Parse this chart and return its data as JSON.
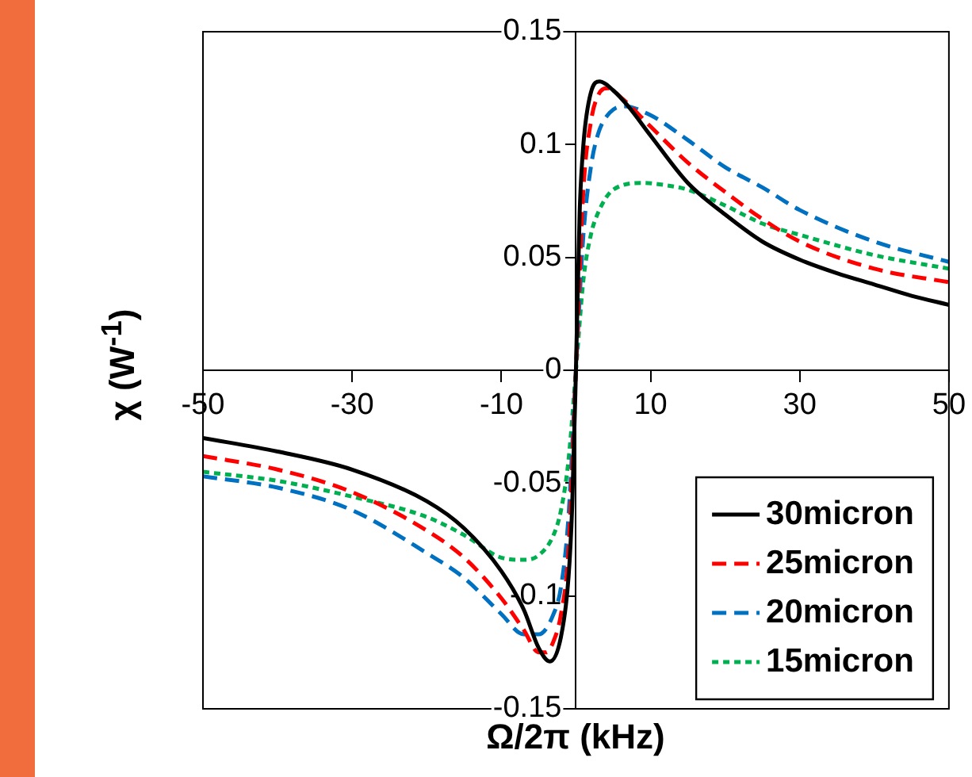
{
  "chart_data": {
    "type": "line",
    "xlabel": "Ω/2π (kHz)",
    "ylabel": "χ (W$^{-1}$)",
    "xlim": [
      -50,
      50
    ],
    "ylim": [
      -0.15,
      0.15
    ],
    "xticks": [
      -50,
      -30,
      -10,
      10,
      30,
      50
    ],
    "yticks": [
      -0.15,
      -0.1,
      -0.05,
      0,
      0.05,
      0.1,
      0.15
    ],
    "grid": false,
    "legend": "bottom right",
    "marker": "none",
    "series": [
      {
        "name": "30micron",
        "color": "#000000",
        "line_style": "solid",
        "x": [
          -50,
          -40,
          -30,
          -20,
          -15,
          -10,
          -7,
          -5,
          -3.5,
          -2,
          -1,
          -0.5,
          0,
          0.5,
          1,
          2,
          3.2,
          5,
          7,
          10,
          15,
          20,
          25,
          30,
          35,
          40,
          45,
          50
        ],
        "values": [
          -0.03,
          -0.036,
          -0.044,
          -0.058,
          -0.07,
          -0.089,
          -0.106,
          -0.123,
          -0.129,
          -0.118,
          -0.092,
          -0.06,
          0,
          0.07,
          0.1,
          0.123,
          0.128,
          0.124,
          0.117,
          0.104,
          0.083,
          0.069,
          0.057,
          0.049,
          0.043,
          0.038,
          0.033,
          0.029
        ]
      },
      {
        "name": "25micron",
        "color": "#ff0000",
        "line_style": "dashed",
        "x": [
          -50,
          -40,
          -30,
          -20,
          -15,
          -10,
          -7,
          -5,
          -4,
          -3,
          -2,
          -1,
          0,
          1,
          2,
          3,
          4.3,
          6,
          10,
          15,
          20,
          25,
          30,
          40,
          50
        ],
        "values": [
          -0.038,
          -0.044,
          -0.054,
          -0.071,
          -0.083,
          -0.101,
          -0.115,
          -0.125,
          -0.125,
          -0.12,
          -0.108,
          -0.08,
          0,
          0.08,
          0.11,
          0.122,
          0.125,
          0.121,
          0.108,
          0.092,
          0.079,
          0.067,
          0.057,
          0.045,
          0.039
        ]
      },
      {
        "name": "20micron",
        "color": "#0070c0",
        "line_style": "dashed",
        "x": [
          -50,
          -40,
          -30,
          -20,
          -15,
          -10,
          -7,
          -5,
          -3,
          -2,
          -1,
          0,
          1,
          2,
          3,
          4.5,
          6.4,
          10,
          15,
          20,
          25,
          30,
          40,
          50
        ],
        "values": [
          -0.047,
          -0.052,
          -0.062,
          -0.081,
          -0.092,
          -0.108,
          -0.117,
          -0.117,
          -0.108,
          -0.096,
          -0.065,
          0,
          0.06,
          0.09,
          0.105,
          0.114,
          0.117,
          0.113,
          0.102,
          0.09,
          0.081,
          0.071,
          0.057,
          0.048
        ]
      },
      {
        "name": "15micron",
        "color": "#00b050",
        "line_style": "dotted",
        "x": [
          -50,
          -40,
          -30,
          -20,
          -15,
          -10,
          -7,
          -5,
          -3,
          -2,
          -1,
          0,
          1,
          2,
          3,
          5,
          9,
          12,
          15,
          20,
          25,
          30,
          40,
          50
        ],
        "values": [
          -0.045,
          -0.049,
          -0.056,
          -0.065,
          -0.073,
          -0.083,
          -0.084,
          -0.082,
          -0.073,
          -0.062,
          -0.04,
          0,
          0.04,
          0.06,
          0.07,
          0.08,
          0.083,
          0.082,
          0.08,
          0.073,
          0.065,
          0.06,
          0.051,
          0.045
        ]
      }
    ]
  }
}
